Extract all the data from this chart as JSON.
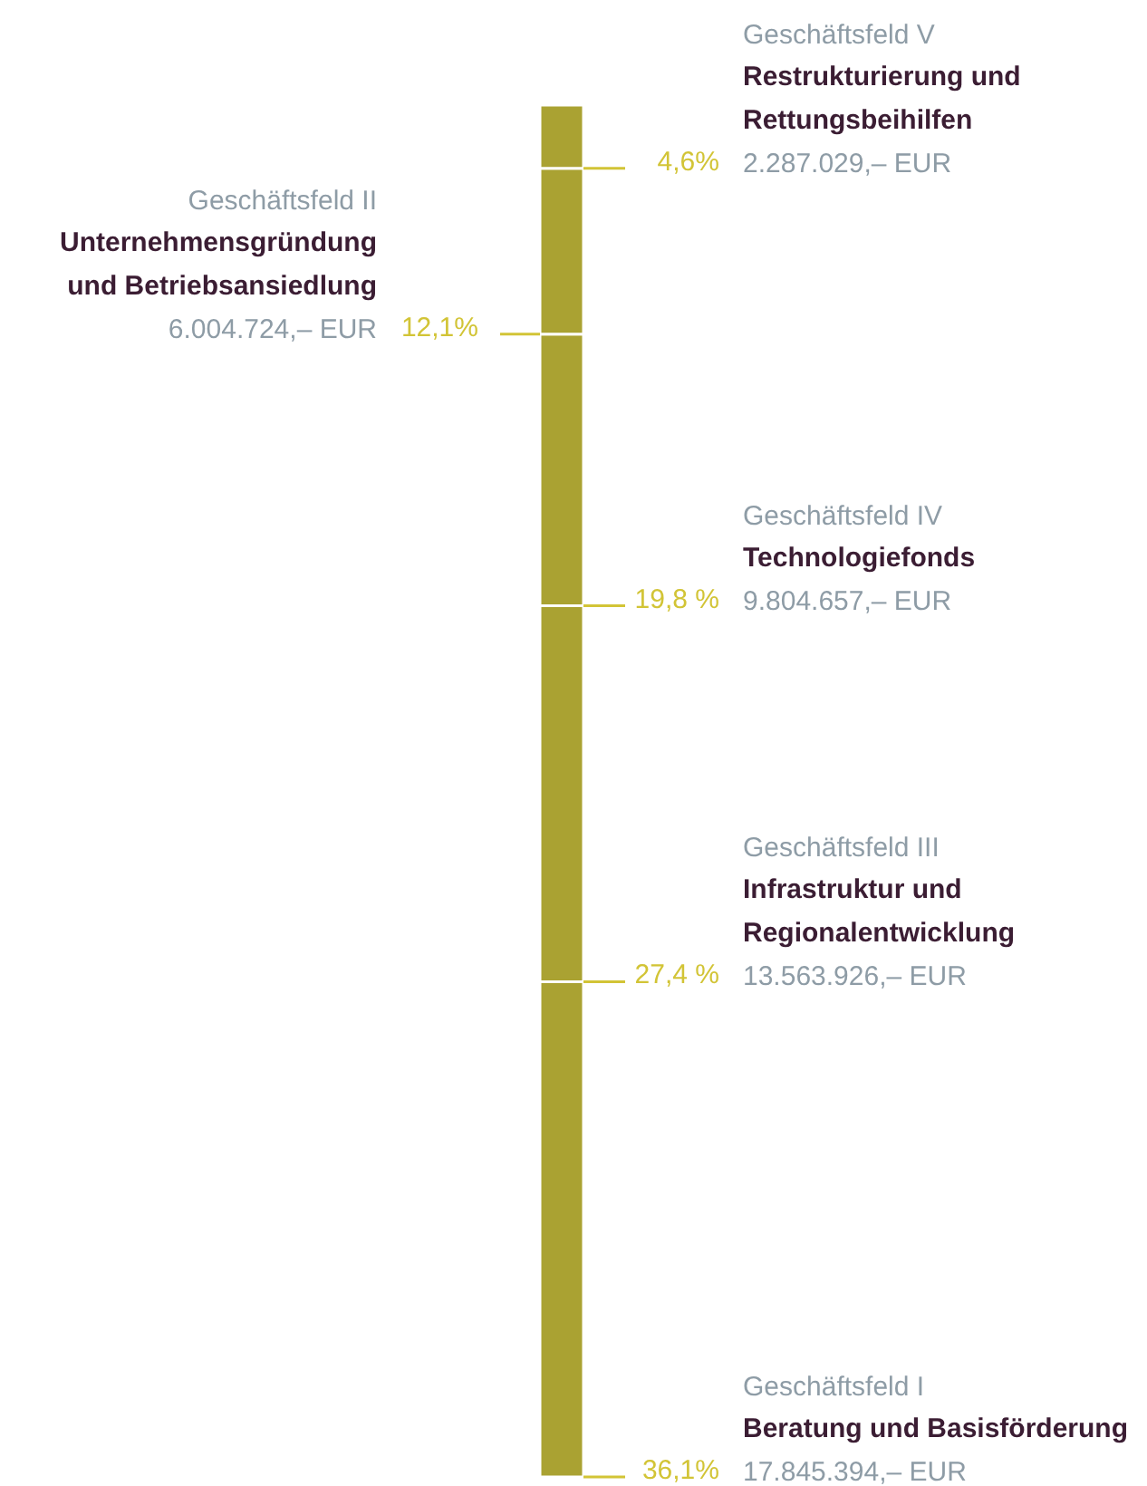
{
  "chart_data": {
    "type": "bar",
    "stacked": true,
    "categories": [
      null
    ],
    "series": [
      {
        "color": "#aaa232",
        "values": [
          36.1
        ],
        "value_labels": [
          "36,1%"
        ]
      },
      {
        "color": "#aaa232",
        "values": [
          27.4
        ],
        "value_labels": [
          "27,4 %"
        ]
      },
      {
        "color": "#aaa232",
        "values": [
          19.8
        ],
        "value_labels": [
          "19,8 %"
        ]
      },
      {
        "color": "#aaa232",
        "values": [
          12.1
        ],
        "value_labels": [
          "12,1%"
        ]
      },
      {
        "color": "#aaa232",
        "values": [
          4.6
        ],
        "value_labels": [
          "4,6%"
        ]
      }
    ],
    "annotations": [
      "Geschäftsfeld I",
      "Geschäftsfeld III",
      "Geschäftsfeld IV",
      "Geschäftsfeld II",
      "Geschäftsfeld V",
      "Beratung und Basisförderung",
      "Infrastruktur und Regionalentwicklung",
      "Technologiefonds",
      "Unternehmensgründung und Betriebsansiedlung",
      "Restrukturierung und Rettungsbeihilfen",
      "17.845.394,– EUR",
      "13.563.926,– EUR",
      "9.804.657,– EUR",
      "6.004.724,– EUR",
      "2.287.029,– EUR"
    ]
  }
}
